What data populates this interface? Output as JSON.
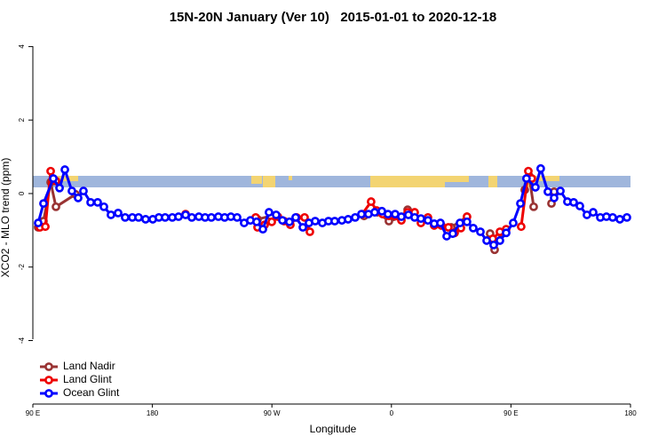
{
  "chart_data": {
    "type": "line",
    "title": "15N-20N January (Ver 10)   2015-01-01 to 2020-12-18",
    "xlabel": "Longitude",
    "ylabel": "XCO2 - MLO trend (ppm)",
    "xlim": [
      90,
      540
    ],
    "xticks": [
      {
        "value": 90,
        "label": "90 E"
      },
      180,
      {
        "value": 270,
        "label": "90 W"
      },
      {
        "value": 360,
        "label": "0"
      },
      {
        "value": 450,
        "label": "90 E"
      },
      {
        "value": 540,
        "label": "180"
      }
    ],
    "ylim": [
      -5.8,
      4.3
    ],
    "yticks": [
      -4,
      -2,
      0,
      2,
      4
    ],
    "legend": "bottomleft",
    "series": [
      {
        "name": "Land Nadir",
        "color": "#993333",
        "x": [
          94.0,
          98.0,
          103.4,
          107.4,
          122.1,
          null,
          259.2,
          269.2,
          null,
          339.4,
          349.4,
          358.1,
          367.5,
          372.2,
          null,
          405.0,
          416.9,
          null,
          434.3,
          437.7,
          443.0,
          null,
          460.4,
          463.7,
          467.1,
          null,
          480.5,
          482.5
        ],
        "values": [
          -0.92,
          -0.75,
          0.31,
          -0.36,
          -0.02,
          null,
          -0.7,
          -0.61,
          null,
          -0.61,
          -0.51,
          -0.75,
          -0.65,
          -0.44,
          null,
          -0.92,
          -0.63,
          null,
          -1.09,
          -1.53,
          -1.09,
          null,
          0.1,
          0.48,
          -0.36,
          null,
          -0.27,
          0.05
        ]
      },
      {
        "name": "Land Glint",
        "color": "#ee0000",
        "x": [
          95.3,
          99.4,
          103.4,
          107.4,
          null,
          205.0,
          null,
          257.8,
          259.2,
          264.5,
          269.9,
          274.5,
          279.2,
          283.9,
          288.6,
          294.6,
          298.6,
          null,
          338.0,
          344.7,
          348.8,
          353.4,
          358.1,
          362.8,
          367.5,
          372.2,
          377.5,
          382.2,
          387.5,
          392.2,
          397.6,
          402.9,
          407.6,
          412.3,
          416.9,
          null,
          436.3,
          441.7,
          446.4,
          null,
          457.7,
          463.1,
          465.7
        ],
        "values": [
          -0.92,
          -0.9,
          0.61,
          0.34,
          null,
          -0.56,
          null,
          -0.65,
          -0.92,
          -0.85,
          -0.77,
          -0.63,
          -0.75,
          -0.85,
          -0.65,
          -0.65,
          -1.04,
          null,
          -0.56,
          -0.22,
          -0.46,
          -0.56,
          -0.61,
          -0.61,
          -0.73,
          -0.51,
          -0.51,
          -0.8,
          -0.65,
          -0.87,
          -0.87,
          -0.92,
          -1.07,
          -0.94,
          -0.63,
          null,
          -1.23,
          -1.04,
          -0.97,
          null,
          -0.9,
          0.61,
          0.41
        ]
      },
      {
        "name": "Ocean Glint",
        "color": "#0000ff",
        "x": [
          94.0,
          98.0,
          105.4,
          110.1,
          114.1,
          119.4,
          124.1,
          128.1,
          133.5,
          138.8,
          143.5,
          148.8,
          154.2,
          159.5,
          164.9,
          169.6,
          174.9,
          180.3,
          184.9,
          189.6,
          195.0,
          199.7,
          205.0,
          209.7,
          215.0,
          219.7,
          224.4,
          229.7,
          234.4,
          239.1,
          243.8,
          249.1,
          253.8,
          258.5,
          263.2,
          267.8,
          273.2,
          277.9,
          283.2,
          287.9,
          293.3,
          297.9,
          302.6,
          308.0,
          312.6,
          317.3,
          322.7,
          327.4,
          332.7,
          337.4,
          342.7,
          347.4,
          352.8,
          357.4,
          362.8,
          367.5,
          372.8,
          377.5,
          382.2,
          387.5,
          392.2,
          396.9,
          401.6,
          406.2,
          411.6,
          416.9,
          421.6,
          427.0,
          431.7,
          437.0,
          441.7,
          446.4,
          451.7,
          457.1,
          461.7,
          468.4,
          472.4,
          477.8,
          482.5,
          487.2,
          492.5,
          497.2,
          501.9,
          507.2,
          511.9,
          517.3,
          521.9,
          526.6,
          532.0,
          537.3
        ],
        "values": [
          -0.8,
          -0.27,
          0.41,
          0.15,
          0.65,
          0.07,
          -0.12,
          0.07,
          -0.24,
          -0.24,
          -0.36,
          -0.58,
          -0.53,
          -0.65,
          -0.65,
          -0.65,
          -0.7,
          -0.7,
          -0.65,
          -0.65,
          -0.65,
          -0.63,
          -0.58,
          -0.65,
          -0.63,
          -0.65,
          -0.65,
          -0.63,
          -0.65,
          -0.63,
          -0.65,
          -0.8,
          -0.73,
          -0.77,
          -0.97,
          -0.51,
          -0.58,
          -0.73,
          -0.77,
          -0.65,
          -0.92,
          -0.8,
          -0.75,
          -0.8,
          -0.75,
          -0.75,
          -0.73,
          -0.7,
          -0.65,
          -0.56,
          -0.56,
          -0.51,
          -0.48,
          -0.56,
          -0.56,
          -0.63,
          -0.58,
          -0.65,
          -0.68,
          -0.73,
          -0.82,
          -0.8,
          -1.16,
          -1.09,
          -0.8,
          -0.77,
          -0.94,
          -1.04,
          -1.28,
          -1.4,
          -1.28,
          -1.07,
          -0.8,
          -0.27,
          0.41,
          0.17,
          0.68,
          0.05,
          -0.12,
          0.07,
          -0.22,
          -0.24,
          -0.34,
          -0.58,
          -0.51,
          -0.65,
          -0.63,
          -0.65,
          -0.7,
          -0.65
        ]
      }
    ]
  }
}
